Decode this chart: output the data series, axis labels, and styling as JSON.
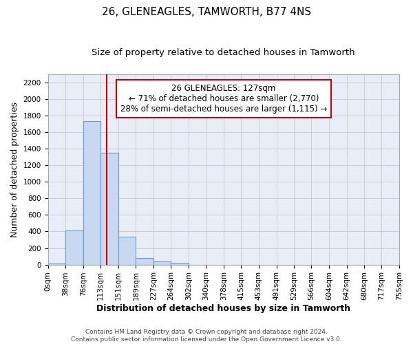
{
  "title": "26, GLENEAGLES, TAMWORTH, B77 4NS",
  "subtitle": "Size of property relative to detached houses in Tamworth",
  "xlabel": "Distribution of detached houses by size in Tamworth",
  "ylabel": "Number of detached properties",
  "bin_edges": [
    0,
    38,
    76,
    113,
    151,
    189,
    227,
    264,
    302,
    340,
    378,
    415,
    453,
    491,
    529,
    566,
    604,
    642,
    680,
    717,
    755
  ],
  "bar_heights": [
    15,
    410,
    1730,
    1350,
    340,
    80,
    35,
    25,
    0,
    0,
    0,
    0,
    0,
    0,
    0,
    0,
    0,
    0,
    0,
    0
  ],
  "bar_color": "#c8d8f0",
  "bar_edge_color": "#6699cc",
  "grid_color": "#cccccc",
  "property_size": 127,
  "vline_color": "#cc0000",
  "annotation_text": "26 GLENEAGLES: 127sqm\n← 71% of detached houses are smaller (2,770)\n28% of semi-detached houses are larger (1,115) →",
  "annotation_box_color": "#cc0000",
  "annotation_bg": "#ffffff",
  "ylim": [
    0,
    2300
  ],
  "yticks": [
    0,
    200,
    400,
    600,
    800,
    1000,
    1200,
    1400,
    1600,
    1800,
    2000,
    2200
  ],
  "xtick_labels": [
    "0sqm",
    "38sqm",
    "76sqm",
    "113sqm",
    "151sqm",
    "189sqm",
    "227sqm",
    "264sqm",
    "302sqm",
    "340sqm",
    "378sqm",
    "415sqm",
    "453sqm",
    "491sqm",
    "529sqm",
    "566sqm",
    "604sqm",
    "642sqm",
    "680sqm",
    "717sqm",
    "755sqm"
  ],
  "footer_text": "Contains HM Land Registry data © Crown copyright and database right 2024.\nContains public sector information licensed under the Open Government Licence v3.0.",
  "bg_color": "#e8eef8",
  "title_fontsize": 11,
  "subtitle_fontsize": 9.5,
  "axis_label_fontsize": 9,
  "tick_fontsize": 7.5,
  "annotation_fontsize": 8.5,
  "footer_fontsize": 6.5
}
